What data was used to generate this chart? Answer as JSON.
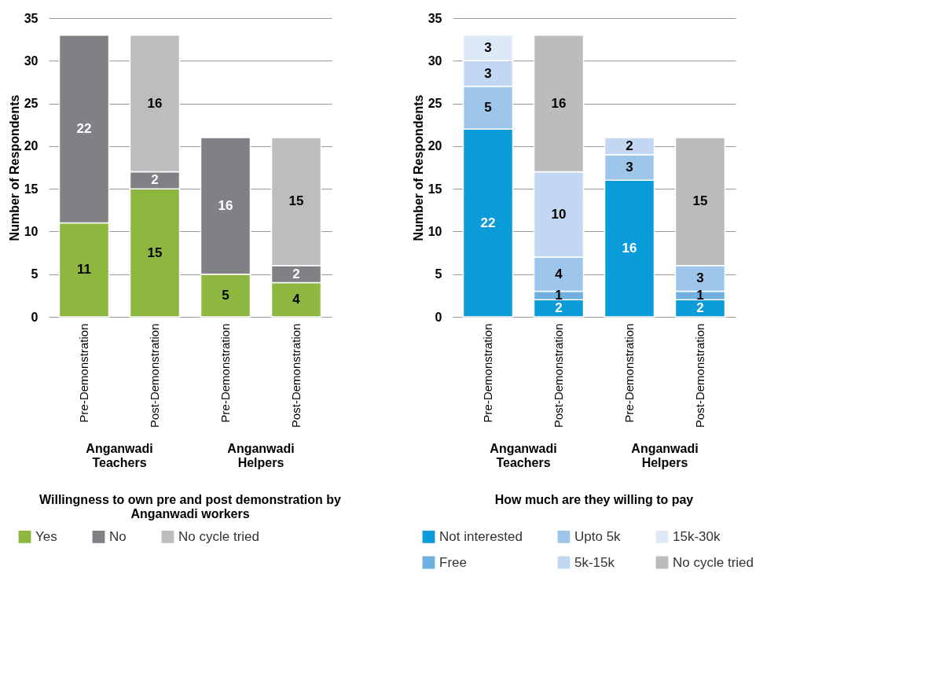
{
  "chart_data": [
    {
      "type": "bar",
      "stacked": true,
      "title": "Willingness to own pre and post demonstration by Anganwadi workers",
      "ylabel": "Number of Respondents",
      "categories": [
        "Pre-Demonstration",
        "Post-Demonstration",
        "Pre-Demonstration",
        "Post-Demonstration"
      ],
      "annotations": [
        "Anganwadi Teachers",
        "Anganwadi Helpers"
      ],
      "series": [
        {
          "name": "Yes",
          "color": "#8db73f",
          "values": [
            11,
            15,
            5,
            4
          ]
        },
        {
          "name": "No",
          "color": "#808184",
          "values": [
            22,
            2,
            16,
            2
          ]
        },
        {
          "name": "No cycle tried",
          "color": "#bdbdbf",
          "values": [
            null,
            16,
            null,
            15
          ]
        }
      ],
      "ylim": [
        0,
        35
      ],
      "yticks": [
        0,
        5,
        10,
        15,
        20,
        25,
        30,
        35
      ],
      "grid": "y",
      "legend": "bottom",
      "data_labels": true
    },
    {
      "type": "bar",
      "stacked": true,
      "title": "How much are they willing to pay",
      "ylabel": "Number of Respondents",
      "categories": [
        "Pre-Demonstration",
        "Post-Demonstration",
        "Pre-Demonstration",
        "Post-Demonstration"
      ],
      "annotations": [
        "Anganwadi Teachers",
        "Anganwadi Helpers"
      ],
      "series": [
        {
          "name": "Not interested",
          "color": "#0a9cd8",
          "values": [
            22,
            2,
            16,
            2
          ]
        },
        {
          "name": "Free",
          "color": "#6fb0e0",
          "values": [
            null,
            1,
            null,
            1
          ]
        },
        {
          "name": "Upto 5k",
          "color": "#9dc6ea",
          "values": [
            5,
            4,
            3,
            3
          ]
        },
        {
          "name": "5k-15k",
          "color": "#c2d8f2",
          "values": [
            3,
            10,
            2,
            null
          ]
        },
        {
          "name": "15k-30k",
          "color": "#dde9f7",
          "values": [
            3,
            null,
            null,
            null
          ]
        },
        {
          "name": "No cycle tried",
          "color": "#bcbcbe",
          "values": [
            null,
            16,
            null,
            15
          ]
        }
      ],
      "ylim": [
        0,
        35
      ],
      "yticks": [
        0,
        5,
        10,
        15,
        20,
        25,
        30,
        35
      ],
      "grid": "y",
      "legend": "bottom",
      "data_labels": true
    }
  ]
}
